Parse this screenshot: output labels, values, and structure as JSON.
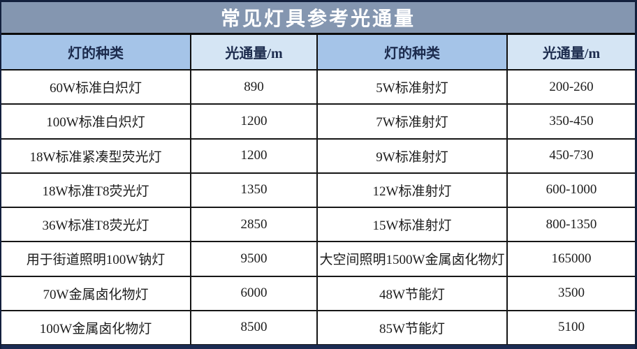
{
  "title": "常见灯具参考光通量",
  "table": {
    "headers": [
      "灯的种类",
      "光通量/m",
      "灯的种类",
      "光通量/m"
    ],
    "rows": [
      [
        "60W标准白炽灯",
        "890",
        "5W标准射灯",
        "200-260"
      ],
      [
        "100W标准白炽灯",
        "1200",
        "7W标准射灯",
        "350-450"
      ],
      [
        "18W标准紧凑型荧光灯",
        "1200",
        "9W标准射灯",
        "450-730"
      ],
      [
        "18W标准T8荧光灯",
        "1350",
        "12W标准射灯",
        "600-1000"
      ],
      [
        "36W标准T8荧光灯",
        "2850",
        "15W标准射灯",
        "800-1350"
      ],
      [
        "用于街道照明100W钠灯",
        "9500",
        "大空间照明1500W金属卤化物灯",
        "165000"
      ],
      [
        "70W金属卤化物灯",
        "6000",
        "48W节能灯",
        "3500"
      ],
      [
        "100W金属卤化物灯",
        "8500",
        "85W节能灯",
        "5100"
      ]
    ]
  },
  "chart_data": {
    "type": "table",
    "title": "常见灯具参考光通量",
    "columns": [
      "灯的种类",
      "光通量/m",
      "灯的种类",
      "光通量/m"
    ],
    "rows": [
      [
        "60W标准白炽灯",
        "890",
        "5W标准射灯",
        "200-260"
      ],
      [
        "100W标准白炽灯",
        "1200",
        "7W标准射灯",
        "350-450"
      ],
      [
        "18W标准紧凑型荧光灯",
        "1200",
        "9W标准射灯",
        "450-730"
      ],
      [
        "18W标准T8荧光灯",
        "1350",
        "12W标准射灯",
        "600-1000"
      ],
      [
        "36W标准T8荧光灯",
        "2850",
        "15W标准射灯",
        "800-1350"
      ],
      [
        "用于街道照明100W钠灯",
        "9500",
        "大空间照明1500W金属卤化物灯",
        "165000"
      ],
      [
        "70W金属卤化物灯",
        "6000",
        "48W节能灯",
        "3500"
      ],
      [
        "100W金属卤化物灯",
        "8500",
        "85W节能灯",
        "5100"
      ]
    ]
  },
  "colors": {
    "title_bar_bg": "#8496b0",
    "title_text": "#ffffff",
    "header_type_bg": "#a5c4e8",
    "header_value_bg": "#d5e5f4",
    "header_text": "#1c2b4d",
    "grid_line": "#161616",
    "outer_border": "#13203d",
    "bottom_strip": "#1b2b52",
    "row_bg": "#ffffff",
    "data_text": "#1c1c1c"
  }
}
